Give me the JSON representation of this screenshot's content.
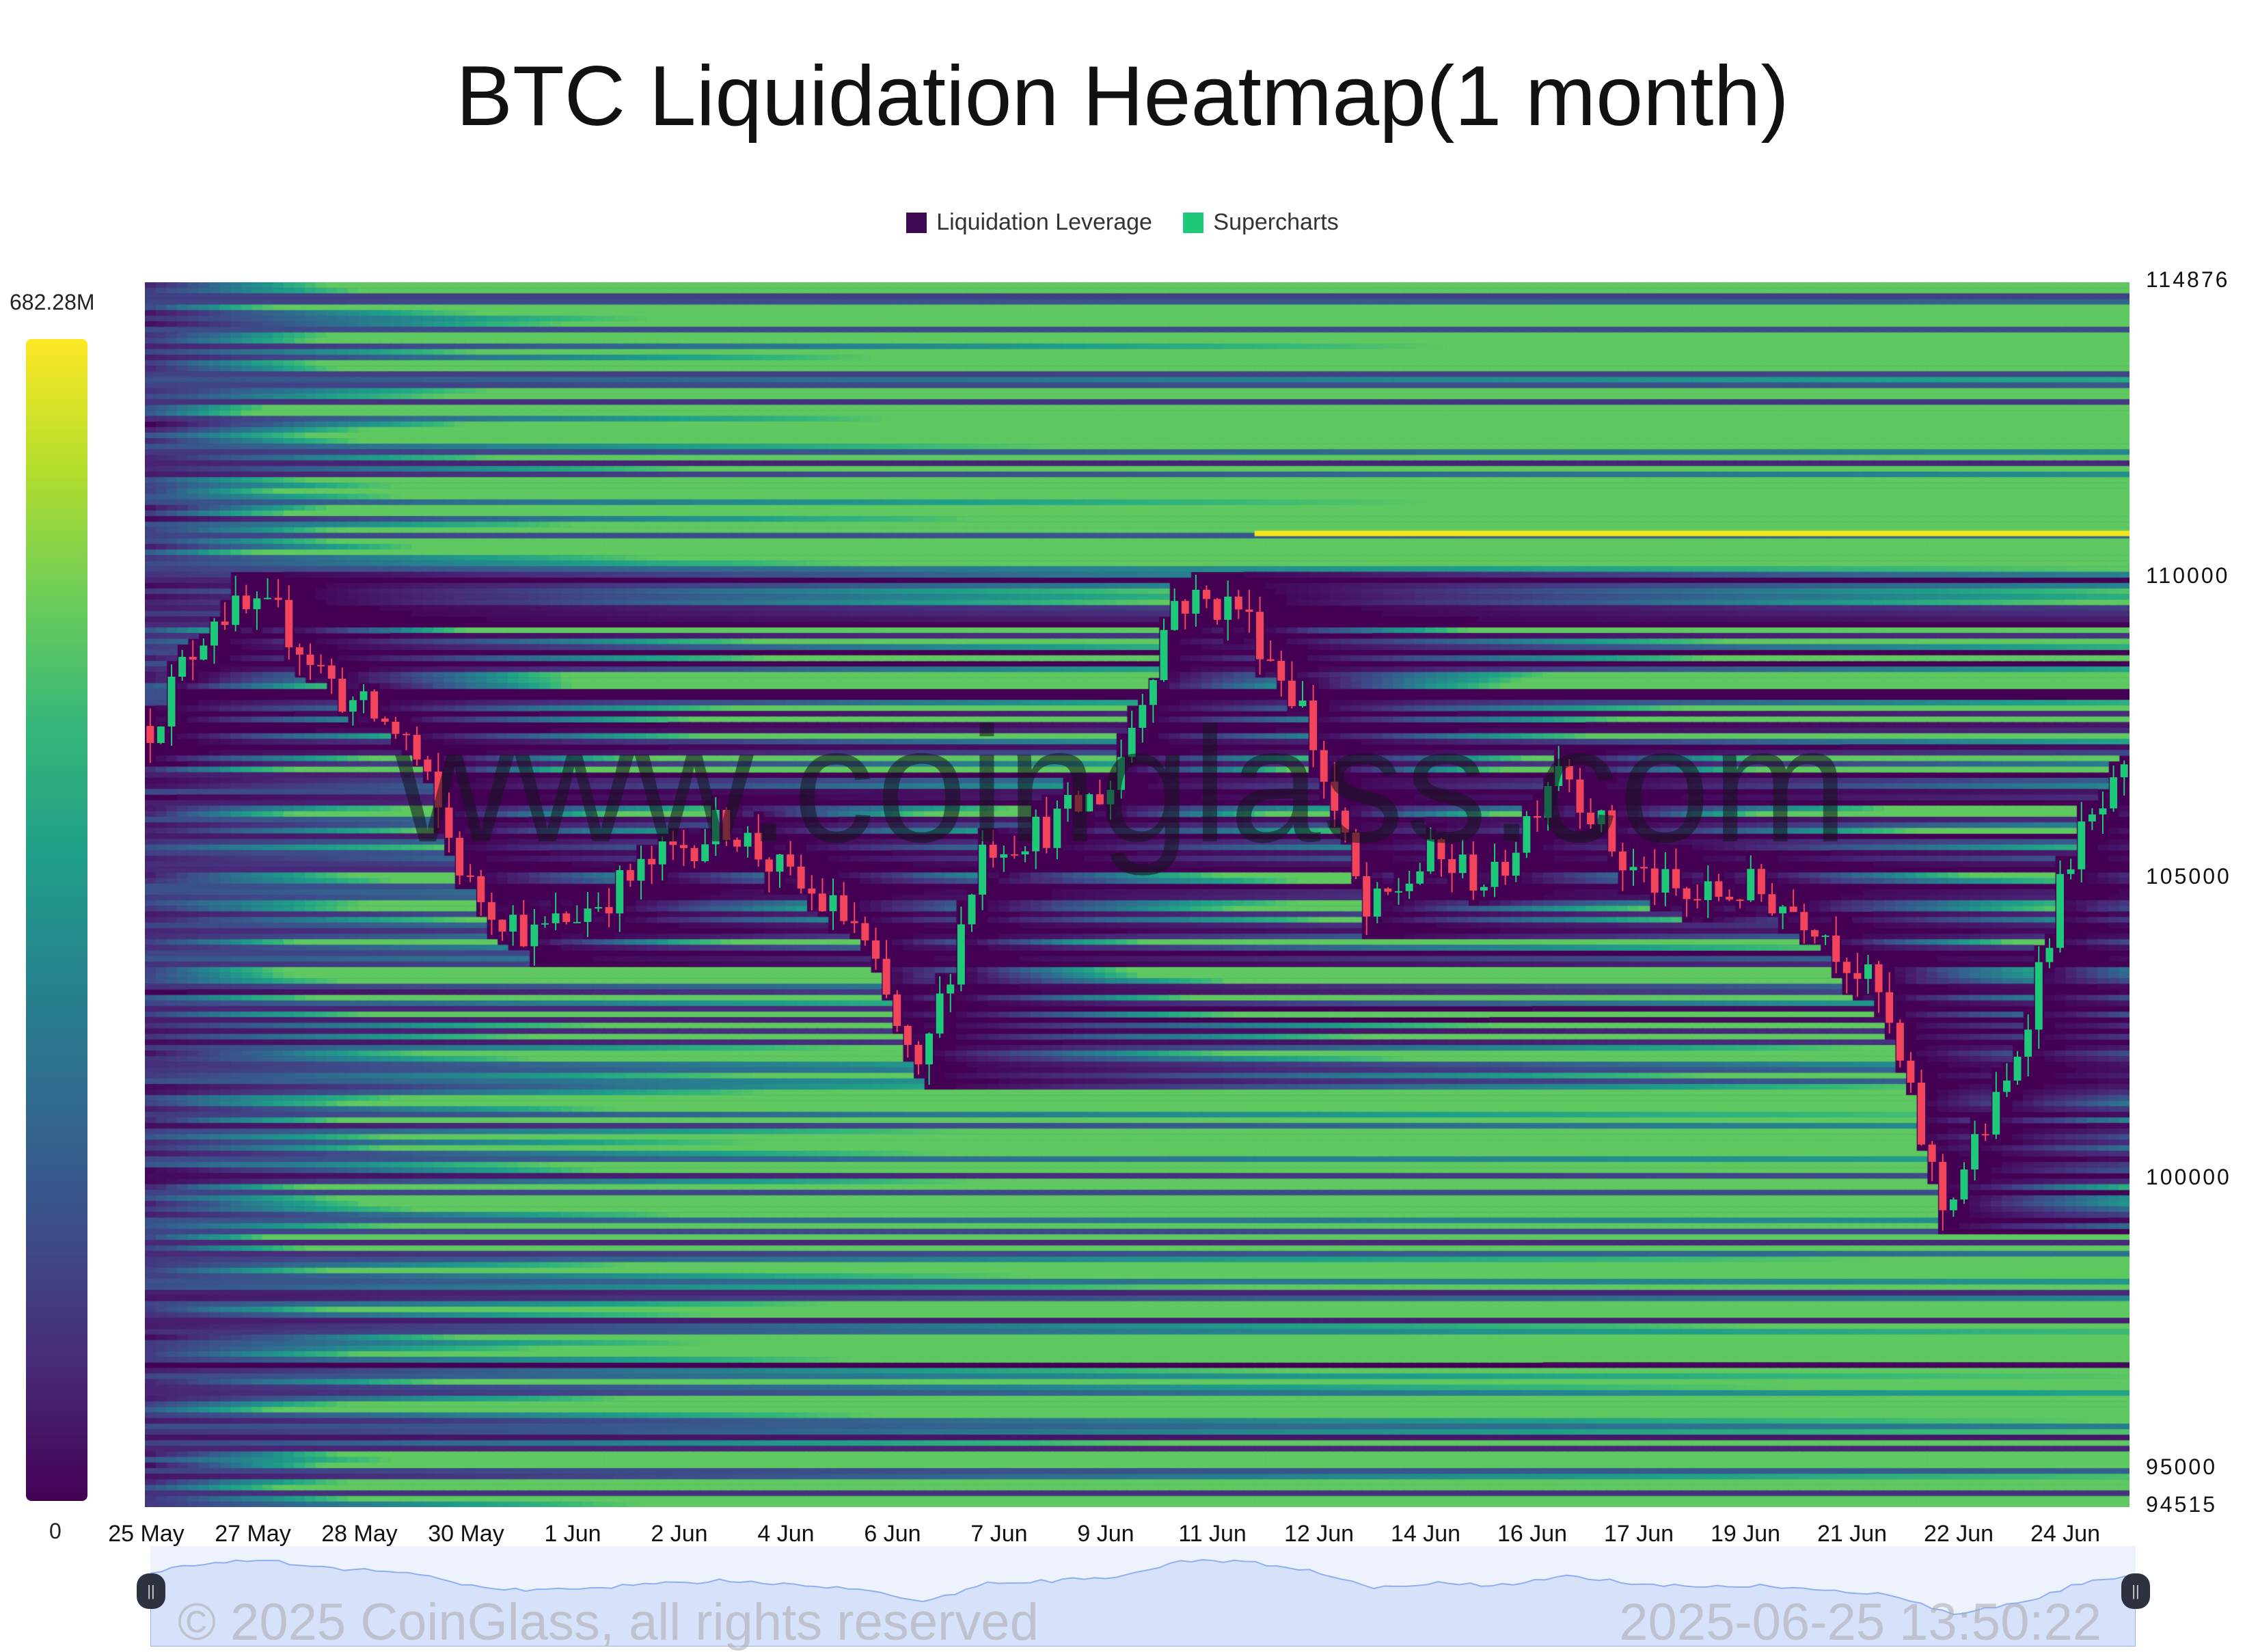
{
  "title": "BTC Liquidation Heatmap(1 month)",
  "legend": [
    {
      "label": "Liquidation Leverage",
      "color": "#3d0a52"
    },
    {
      "label": "Supercharts",
      "color": "#1ec97a"
    }
  ],
  "colorbar": {
    "max_label": "682.28M",
    "min_label": "0",
    "colormap": "viridis"
  },
  "watermark": "www.coinglass.com",
  "footer": {
    "copyright": "© 2025 CoinGlass, all rights reserved",
    "timestamp": "2025-06-25 13:50:22"
  },
  "chart_data": {
    "type": "heatmap",
    "title": "BTC Liquidation Heatmap(1 month)",
    "ylim": [
      94515,
      114876
    ],
    "y_ticks": [
      "114876",
      "110000",
      "105000",
      "100000",
      "95000",
      "94515"
    ],
    "x_ticks": [
      "25 May",
      "27 May",
      "28 May",
      "30 May",
      "1 Jun",
      "2 Jun",
      "4 Jun",
      "6 Jun",
      "7 Jun",
      "9 Jun",
      "11 Jun",
      "12 Jun",
      "14 Jun",
      "16 Jun",
      "17 Jun",
      "19 Jun",
      "21 Jun",
      "22 Jun",
      "24 Jun"
    ],
    "colors": {
      "up": "#1ec97a",
      "down": "#f2455c",
      "peak": "#f5e61c",
      "background": "#440154"
    },
    "peak_level": {
      "price": 110700,
      "from": "10 Jun"
    },
    "price_series": {
      "dates": [
        "25 May",
        "26 May",
        "27 May",
        "28 May",
        "29 May",
        "30 May",
        "31 May",
        "1 Jun",
        "2 Jun",
        "3 Jun",
        "4 Jun",
        "5 Jun",
        "6 Jun",
        "7 Jun",
        "8 Jun",
        "9 Jun",
        "10 Jun",
        "11 Jun",
        "12 Jun",
        "13 Jun",
        "14 Jun",
        "15 Jun",
        "16 Jun",
        "17 Jun",
        "18 Jun",
        "19 Jun",
        "20 Jun",
        "21 Jun",
        "22 Jun",
        "23 Jun",
        "24 Jun",
        "25 Jun"
      ],
      "close": [
        107500,
        109400,
        109300,
        108000,
        107300,
        104800,
        104000,
        104600,
        105300,
        105900,
        104900,
        104200,
        101600,
        105500,
        105800,
        106500,
        109600,
        109500,
        107800,
        104300,
        105300,
        104900,
        107000,
        105200,
        104600,
        104800,
        104300,
        103000,
        99500,
        101500,
        105400,
        106800
      ]
    }
  }
}
